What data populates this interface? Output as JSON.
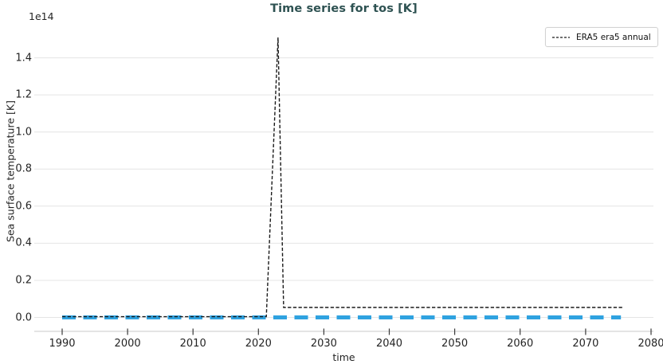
{
  "chart_data": {
    "type": "line",
    "title": "Time series for tos [K]",
    "title_color": "#2e5252",
    "xlabel": "time",
    "ylabel": "Sea surface temperature [K]",
    "y_offset_text": "1e14",
    "value_units": "K",
    "xlim": [
      1985.74,
      2080.37
    ],
    "ylim": [
      -0.075,
      1.57
    ],
    "x_ticks": [
      {
        "value": 1990,
        "label": "1990"
      },
      {
        "value": 2000,
        "label": "2000"
      },
      {
        "value": 2010,
        "label": "2010"
      },
      {
        "value": 2020,
        "label": "2020"
      },
      {
        "value": 2030,
        "label": "2030"
      },
      {
        "value": 2040,
        "label": "2040"
      },
      {
        "value": 2050,
        "label": "2050"
      },
      {
        "value": 2060,
        "label": "2060"
      },
      {
        "value": 2070,
        "label": "2070"
      },
      {
        "value": 2080,
        "label": "2080"
      }
    ],
    "y_ticks": [
      {
        "value": 0.0,
        "label": "0.0"
      },
      {
        "value": 0.2,
        "label": "0.2"
      },
      {
        "value": 0.4,
        "label": "0.4"
      },
      {
        "value": 0.6,
        "label": "0.6"
      },
      {
        "value": 0.8,
        "label": "0.8"
      },
      {
        "value": 1.0,
        "label": "1.0"
      },
      {
        "value": 1.2,
        "label": "1.2"
      },
      {
        "value": 1.4,
        "label": "1.4"
      }
    ],
    "grid": {
      "horizontal": true,
      "vertical": false,
      "color": "#e4e4e4"
    },
    "axis": {
      "spine_color": "#c9c9c9",
      "tick_color": "#3a3a3a",
      "label_color": "#242424"
    },
    "legend": {
      "position": "upper right",
      "entries": [
        {
          "label": "ERA5 era5 annual",
          "color": "#1a1a1a",
          "line_style": "dashed"
        }
      ]
    },
    "series": [
      {
        "label": null,
        "in_legend": false,
        "color": "#2fa2e0",
        "dash": [
          17,
          9.5
        ],
        "width": 5,
        "points_note": "values in units of 1e14 K",
        "points": [
          [
            1990,
            0.0
          ],
          [
            2075.4,
            0.0
          ]
        ]
      },
      {
        "label": "ERA5 era5 annual",
        "in_legend": true,
        "color": "#1a1a1a",
        "dash": [
          4.3,
          2.4
        ],
        "width": 1.4,
        "points_note": "values in units of 1e14 K",
        "points": [
          [
            1990,
            0.004
          ],
          [
            2021.2,
            0.004
          ],
          [
            2023.0,
            1.51
          ],
          [
            2023.85,
            0.054
          ],
          [
            2075.7,
            0.054
          ]
        ]
      }
    ]
  }
}
